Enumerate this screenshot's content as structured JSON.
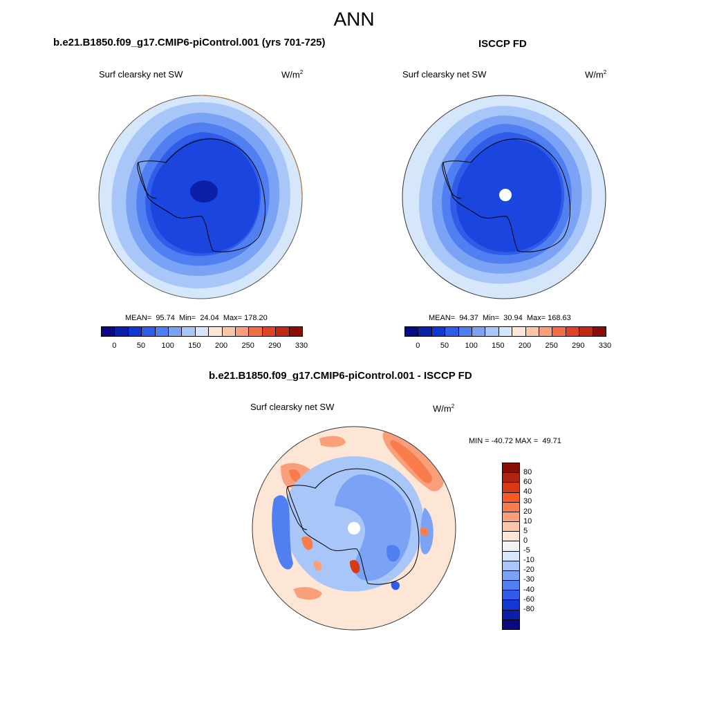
{
  "figure": {
    "title": "ANN",
    "top_left": {
      "panel_title": "b.e21.B1850.f09_g17.CMIP6-piControl.001 (yrs 701-725)",
      "variable": "Surf clearsky net SW",
      "units": "W/m",
      "units_exp": "2",
      "stats": "MEAN=  95.74  Min=  24.04  Max= 178.20"
    },
    "top_right": {
      "panel_title": "ISCCP FD",
      "variable": "Surf clearsky net SW",
      "units": "W/m",
      "units_exp": "2",
      "stats": "MEAN=  94.37  Min=  30.94  Max= 168.63"
    },
    "bottom": {
      "panel_title": "b.e21.B1850.f09_g17.CMIP6-piControl.001 - ISCCP FD",
      "variable": "Surf clearsky net SW",
      "units": "W/m",
      "units_exp": "2",
      "stats": "MIN = -40.72 MAX =  49.71"
    }
  },
  "colorbars": {
    "abs": {
      "colors": [
        "#0a0a82",
        "#0c1fa8",
        "#1237d2",
        "#2f5de8",
        "#4f7ff0",
        "#7aa3f5",
        "#a9c6f8",
        "#d6e6fb",
        "#fde6d6",
        "#fbc6a8",
        "#f9a07a",
        "#f26e47",
        "#e04424",
        "#c02a14",
        "#8a0e04"
      ],
      "labels": [
        "0",
        "50",
        "100",
        "150",
        "200",
        "250",
        "290",
        "330"
      ]
    },
    "diff": {
      "colors": [
        "#8a0e04",
        "#b02510",
        "#d83a15",
        "#fa5a28",
        "#f97d4c",
        "#f9a07a",
        "#fbc6a8",
        "#fde6d6",
        "#f2f2f4",
        "#d6e6fb",
        "#a9c6f8",
        "#7aa3f5",
        "#4f7ff0",
        "#2f5de8",
        "#1237d2",
        "#0c1fa8",
        "#0a0a82"
      ],
      "labels": [
        "80",
        "60",
        "40",
        "30",
        "20",
        "10",
        "5",
        "0",
        "-5",
        "-10",
        "-20",
        "-30",
        "-40",
        "-60",
        "-80"
      ]
    }
  }
}
